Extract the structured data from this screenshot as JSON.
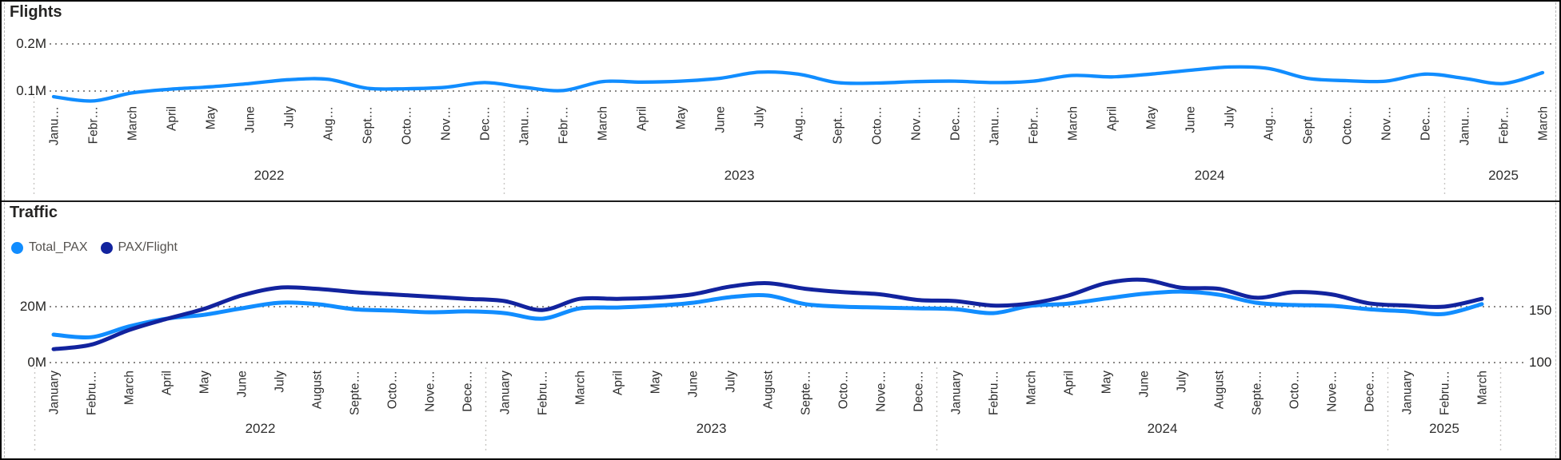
{
  "palette": {
    "series_blue": "#118DFF",
    "series_navy": "#12239E",
    "gridline": "#8A8886",
    "separator": "#C8C6C4",
    "text": "#252423",
    "background": "#FFFFFF",
    "frame_border": "#000000"
  },
  "chart_data": [
    {
      "id": "flights",
      "type": "line",
      "title": "Flights",
      "grid": "dotted-horizontal",
      "legend_position": "none",
      "x_tick_labels": [
        "Janu…",
        "Febr…",
        "March",
        "April",
        "May",
        "June",
        "July",
        "Aug…",
        "Sept…",
        "Octo…",
        "Nov…",
        "Dec…",
        "Janu…",
        "Febr…",
        "March",
        "April",
        "May",
        "June",
        "July",
        "Aug…",
        "Sept…",
        "Octo…",
        "Nov…",
        "Dec…",
        "Janu…",
        "Febr…",
        "March",
        "April",
        "May",
        "June",
        "July",
        "Aug…",
        "Sept…",
        "Octo…",
        "Nov…",
        "Dec…",
        "Janu…",
        "Febr…",
        "March"
      ],
      "year_groups": [
        {
          "label": "2022",
          "start": 0,
          "end": 11
        },
        {
          "label": "2023",
          "start": 12,
          "end": 23
        },
        {
          "label": "2024",
          "start": 24,
          "end": 35
        },
        {
          "label": "2025",
          "start": 36,
          "end": 38
        }
      ],
      "y_axis": {
        "ticks": [
          {
            "label": "0.2M",
            "value": 0.2
          },
          {
            "label": "0.1M",
            "value": 0.1
          }
        ],
        "range_shown": [
          0.1,
          0.2
        ],
        "unit": "M flights"
      },
      "series": [
        {
          "name": "Flights",
          "axis": "left",
          "color": "#118DFF",
          "values": [
            0.088,
            0.079,
            0.096,
            0.104,
            0.109,
            0.116,
            0.124,
            0.125,
            0.106,
            0.105,
            0.108,
            0.118,
            0.108,
            0.101,
            0.12,
            0.119,
            0.121,
            0.127,
            0.14,
            0.136,
            0.118,
            0.117,
            0.12,
            0.121,
            0.118,
            0.121,
            0.133,
            0.13,
            0.136,
            0.144,
            0.151,
            0.148,
            0.127,
            0.122,
            0.121,
            0.136,
            0.127,
            0.116,
            0.139
          ]
        }
      ]
    },
    {
      "id": "traffic",
      "type": "line",
      "title": "Traffic",
      "grid": "dotted-horizontal",
      "legend_position": "top-left",
      "x_tick_labels": [
        "January",
        "Febru…",
        "March",
        "April",
        "May",
        "June",
        "July",
        "August",
        "Septe…",
        "Octo…",
        "Nove…",
        "Dece…",
        "January",
        "Febru…",
        "March",
        "April",
        "May",
        "June",
        "July",
        "August",
        "Septe…",
        "Octo…",
        "Nove…",
        "Dece…",
        "January",
        "Febru…",
        "March",
        "April",
        "May",
        "June",
        "July",
        "August",
        "Septe…",
        "Octo…",
        "Nove…",
        "Dece…",
        "January",
        "Febru…",
        "March"
      ],
      "year_groups": [
        {
          "label": "2022",
          "start": 0,
          "end": 11
        },
        {
          "label": "2023",
          "start": 12,
          "end": 23
        },
        {
          "label": "2024",
          "start": 24,
          "end": 35
        },
        {
          "label": "2025",
          "start": 36,
          "end": 38
        }
      ],
      "y_axis_left": {
        "ticks": [
          {
            "label": "20M",
            "value": 20
          },
          {
            "label": "0M",
            "value": 0
          }
        ],
        "range_shown": [
          0,
          20
        ],
        "unit": "M passengers"
      },
      "y_axis_right": {
        "ticks": [
          {
            "label": "150",
            "value": 150
          },
          {
            "label": "100",
            "value": 100
          }
        ],
        "range_shown": [
          100,
          150
        ],
        "unit": "PAX per flight"
      },
      "series": [
        {
          "name": "Total_PAX",
          "axis": "left",
          "color": "#118DFF",
          "values": [
            10.0,
            9.1,
            12.9,
            15.7,
            17.1,
            19.4,
            21.4,
            20.9,
            19.1,
            18.6,
            18.0,
            18.3,
            17.7,
            15.7,
            19.4,
            19.7,
            20.3,
            21.4,
            23.4,
            24.0,
            20.9,
            20.0,
            19.7,
            19.4,
            19.1,
            17.7,
            20.3,
            21.1,
            22.9,
            24.6,
            25.4,
            24.3,
            21.4,
            20.6,
            20.3,
            19.1,
            18.3,
            17.4,
            20.9
          ]
        },
        {
          "name": "PAX/Flight",
          "axis": "right",
          "color": "#12239E",
          "values": [
            112,
            116,
            129,
            139,
            148,
            160,
            167,
            166,
            163,
            161,
            159,
            157,
            155,
            147,
            157,
            157,
            158,
            161,
            168,
            171,
            166,
            163,
            161,
            156,
            155,
            151,
            153,
            160,
            171,
            174,
            167,
            166,
            158,
            163,
            161,
            153,
            151,
            150,
            157
          ]
        }
      ]
    }
  ]
}
